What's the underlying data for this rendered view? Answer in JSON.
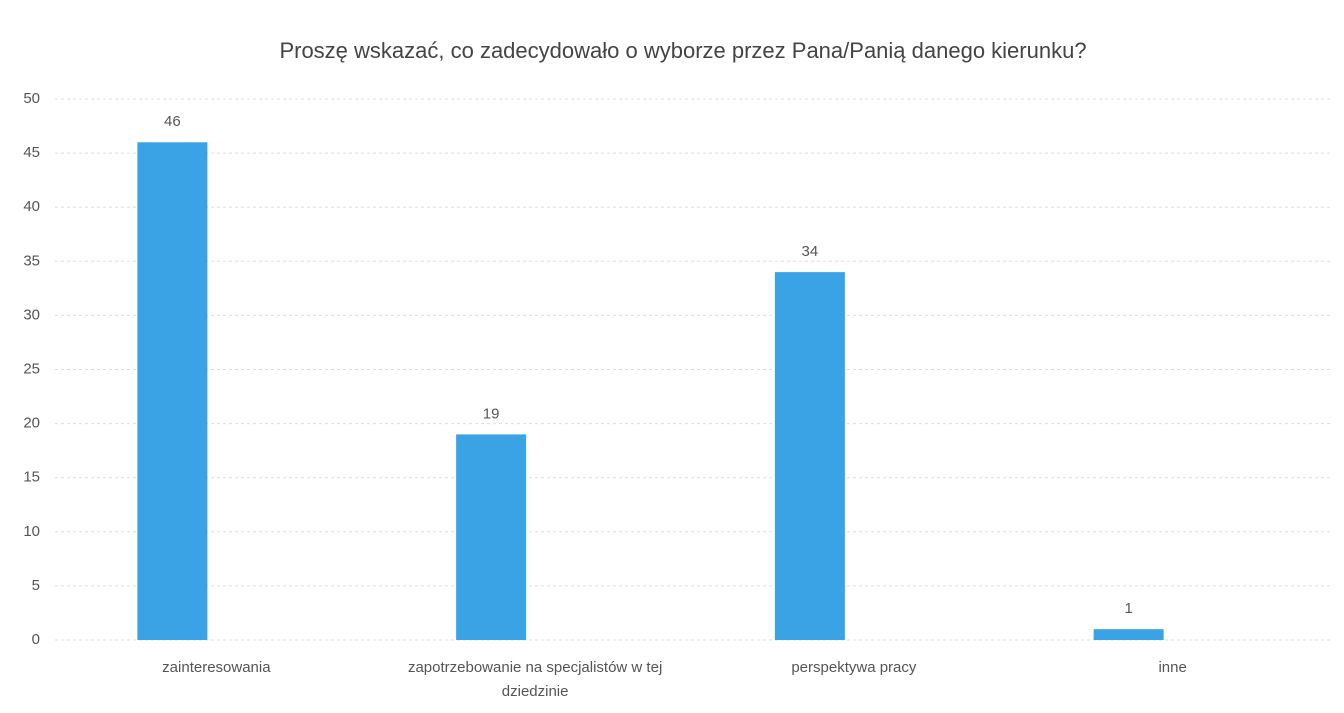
{
  "chart_data": {
    "type": "bar",
    "title": "Proszę wskazać, co zadecydowało o wyborze przez Pana/Panią danego kierunku?",
    "categories": [
      "zainteresowania",
      "zapotrzebowanie na specjalistów w tej dziedzinie",
      "perspektywa pracy",
      "inne"
    ],
    "values": [
      46,
      19,
      34,
      1
    ],
    "color": "#3aa3e6",
    "ylim": [
      0,
      50
    ],
    "yticks": [
      0,
      5,
      10,
      15,
      20,
      25,
      30,
      35,
      40,
      45,
      50
    ],
    "grid": true
  }
}
